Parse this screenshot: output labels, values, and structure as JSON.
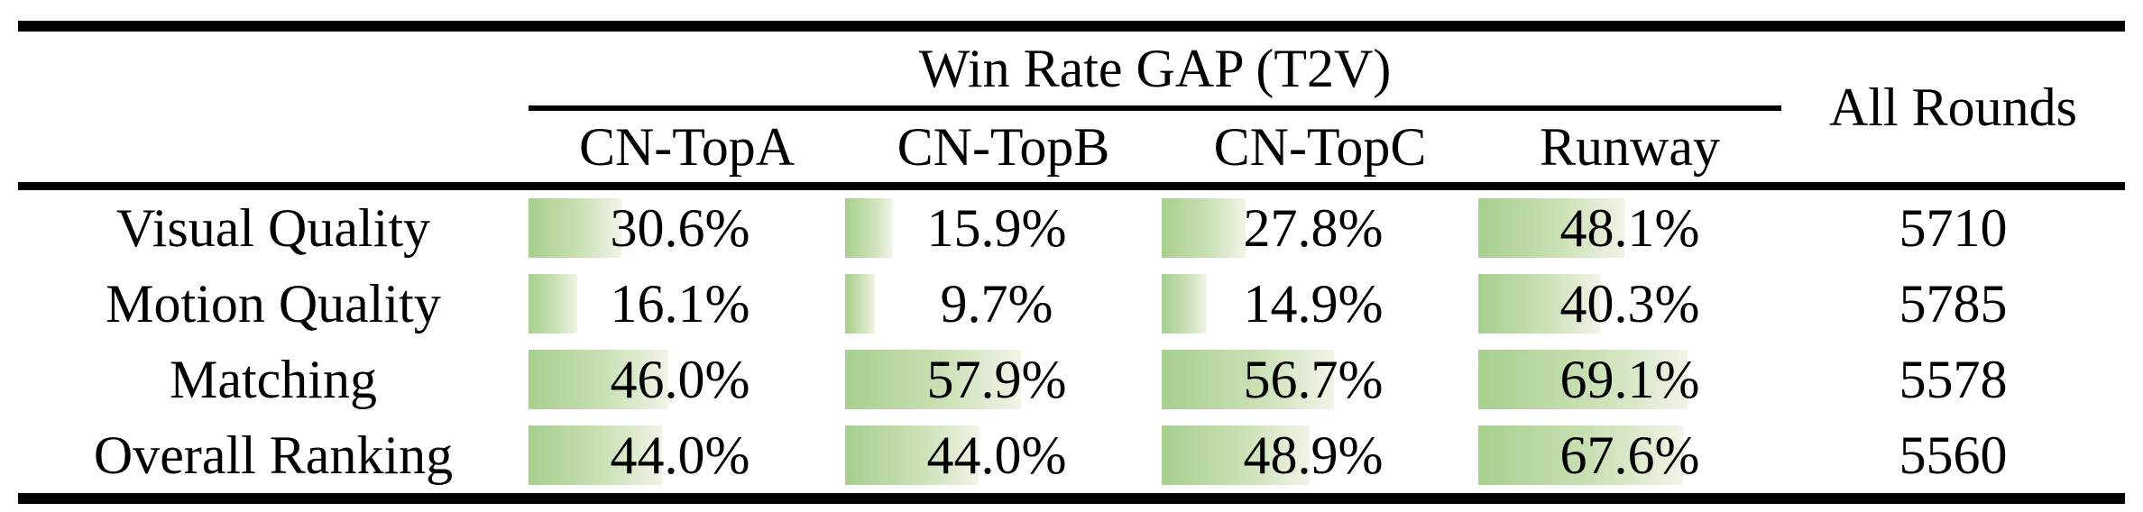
{
  "chart_data": {
    "type": "table",
    "title": "Win Rate GAP (T2V)",
    "group_columns": [
      "CN-TopA",
      "CN-TopB",
      "CN-TopC",
      "Runway"
    ],
    "extra_column_label": "All Rounds",
    "bar_style": {
      "description": "horizontal data bar behind each percentage, width proportional to value (100% = full cell width)",
      "color_left": "#a7cf8e",
      "color_right": "#f1f4e7"
    },
    "rows": [
      {
        "label": "Visual Quality",
        "values": [
          30.6,
          15.9,
          27.8,
          48.1
        ],
        "display": [
          "30.6%",
          "15.9%",
          "27.8%",
          "48.1%"
        ],
        "all_rounds": "5710"
      },
      {
        "label": "Motion Quality",
        "values": [
          16.1,
          9.7,
          14.9,
          40.3
        ],
        "display": [
          "16.1%",
          "9.7%",
          "14.9%",
          "40.3%"
        ],
        "all_rounds": "5785"
      },
      {
        "label": "Matching",
        "values": [
          46.0,
          57.9,
          56.7,
          69.1
        ],
        "display": [
          "46.0%",
          "57.9%",
          "56.7%",
          "69.1%"
        ],
        "all_rounds": "5578"
      },
      {
        "label": "Overall Ranking",
        "values": [
          44.0,
          44.0,
          48.9,
          67.6
        ],
        "display": [
          "44.0%",
          "44.0%",
          "48.9%",
          "67.6%"
        ],
        "all_rounds": "5560"
      }
    ],
    "colors": {
      "text": "#000000",
      "rules": "#000000",
      "background": "#ffffff"
    }
  }
}
